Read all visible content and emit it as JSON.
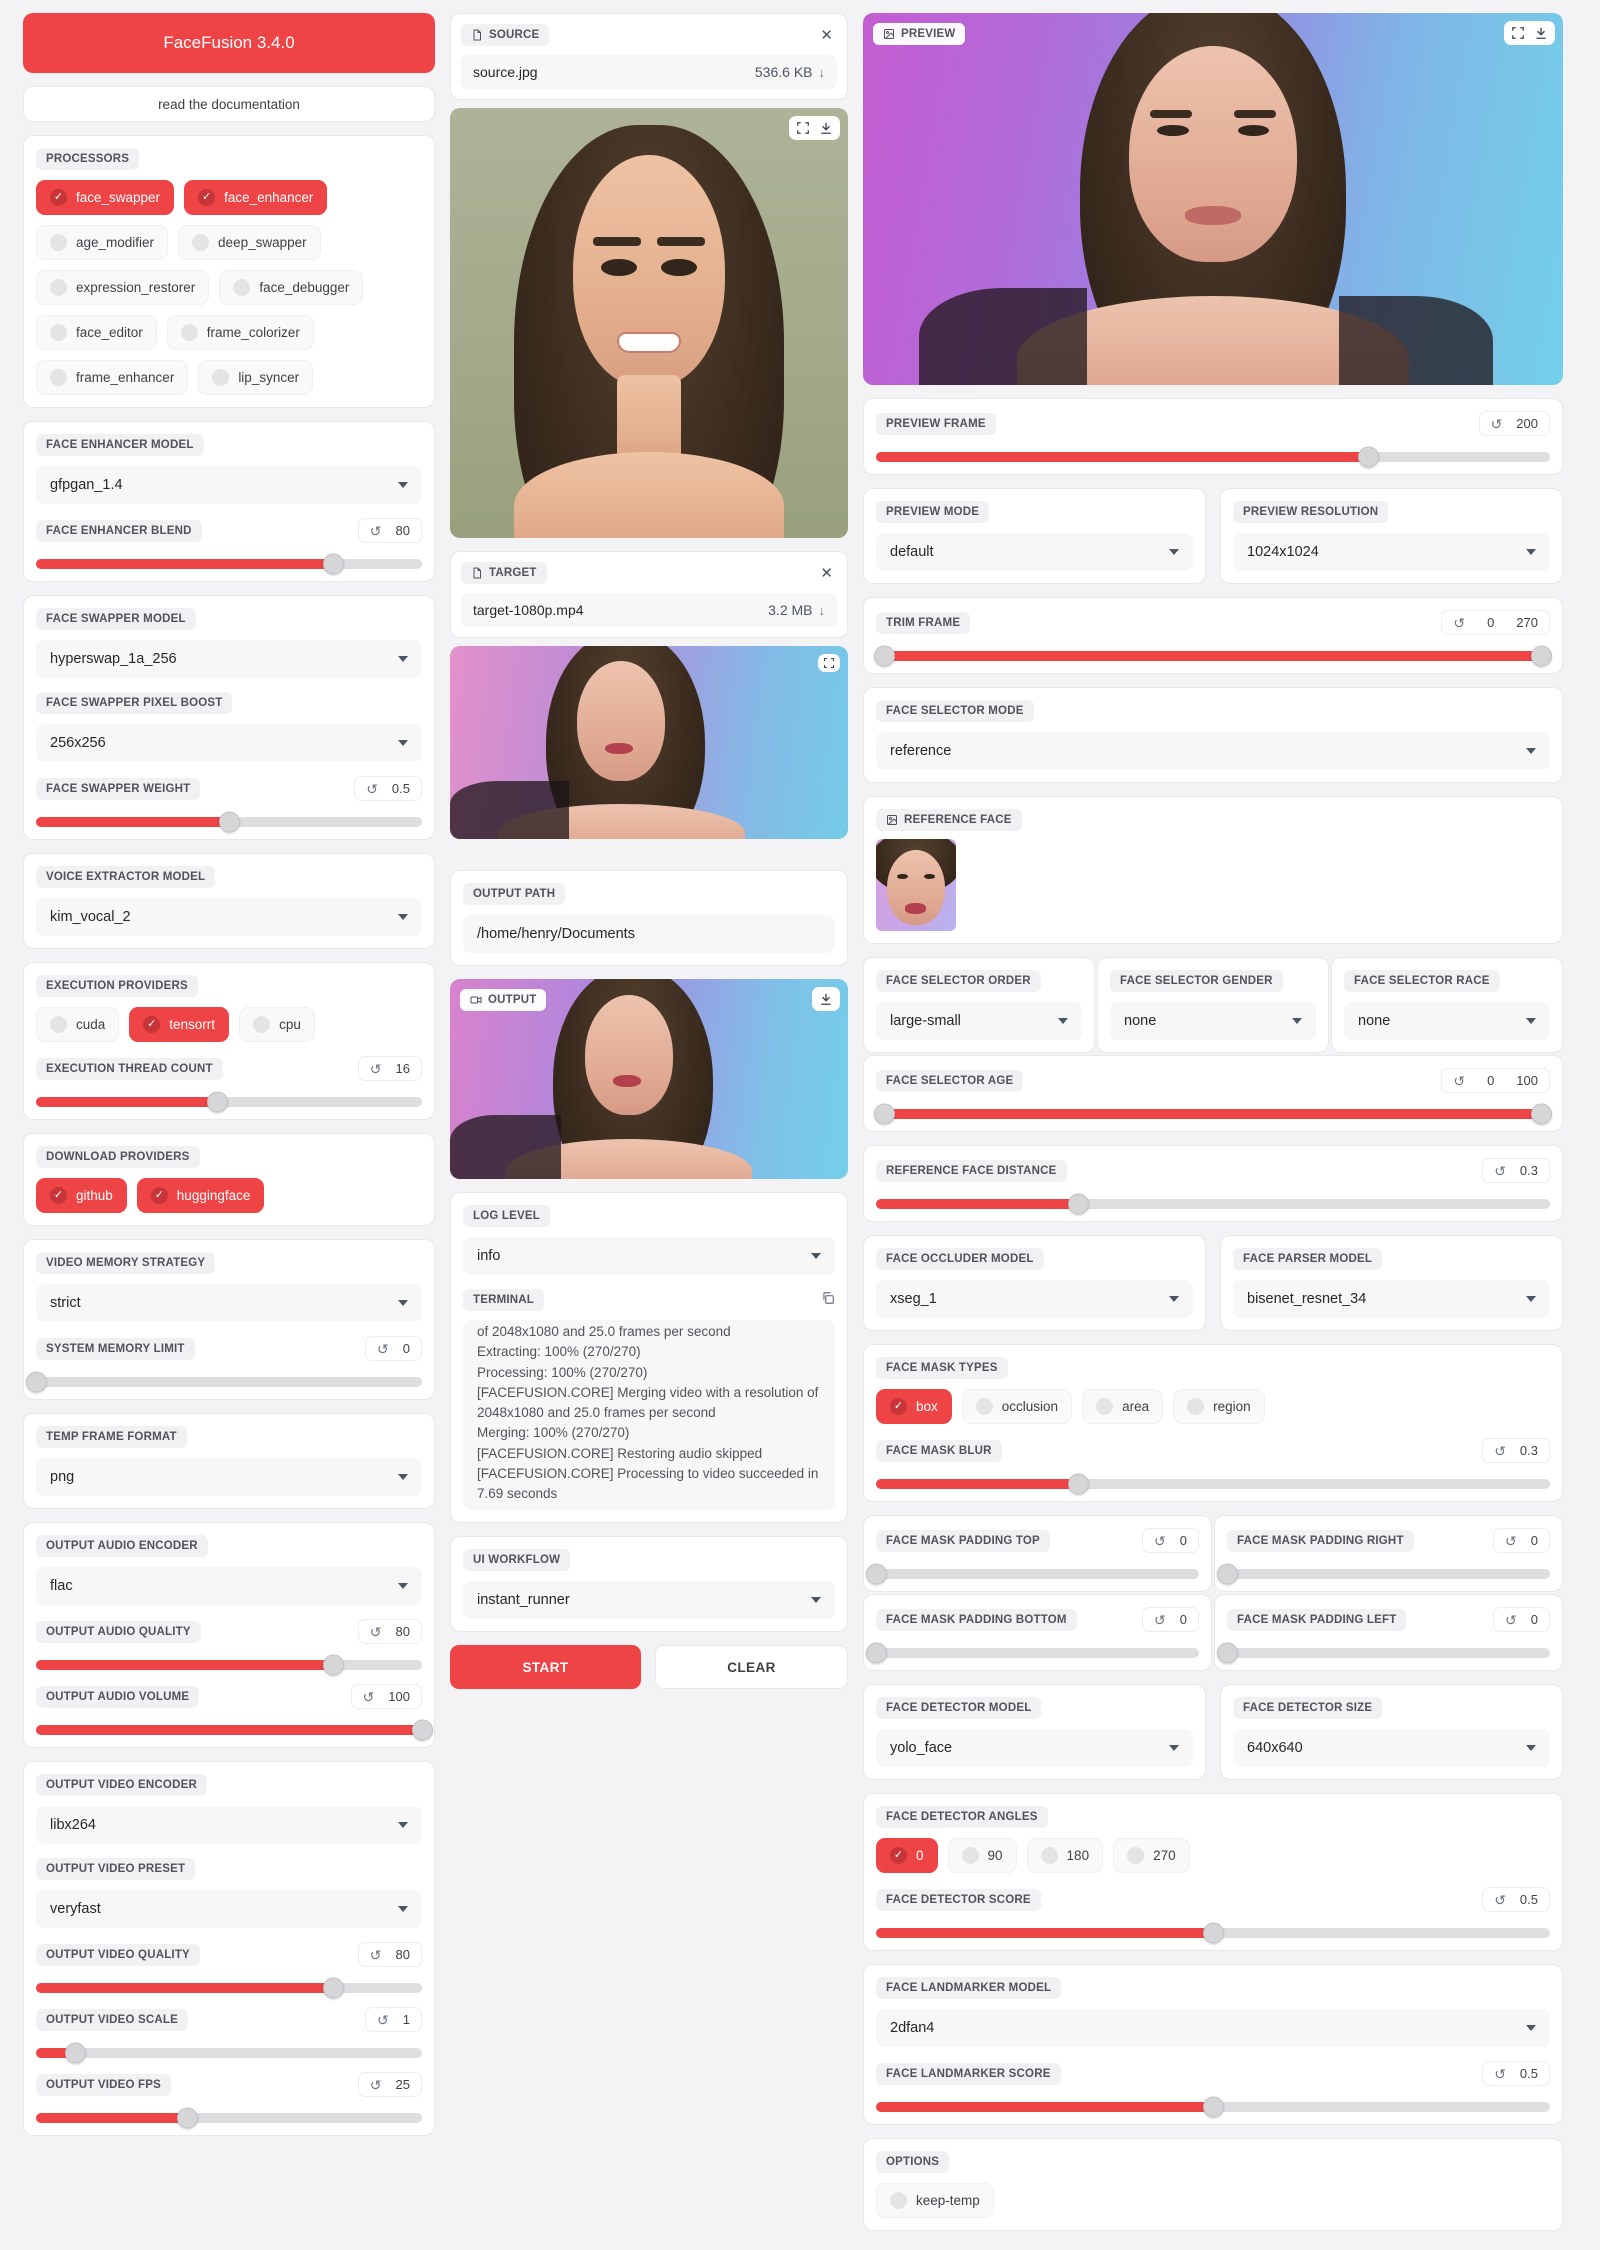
{
  "app": {
    "title": "FaceFusion 3.4.0",
    "doc_button": "read the documentation"
  },
  "colors": {
    "accent": "#ef4446",
    "accent_dark": "#c73538"
  },
  "left": {
    "processors": {
      "label": "PROCESSORS",
      "items": [
        {
          "label": "face_swapper",
          "checked": true
        },
        {
          "label": "face_enhancer",
          "checked": true
        },
        {
          "label": "age_modifier",
          "checked": false
        },
        {
          "label": "deep_swapper",
          "checked": false
        },
        {
          "label": "expression_restorer",
          "checked": false
        },
        {
          "label": "face_debugger",
          "checked": false
        },
        {
          "label": "face_editor",
          "checked": false
        },
        {
          "label": "frame_colorizer",
          "checked": false
        },
        {
          "label": "frame_enhancer",
          "checked": false
        },
        {
          "label": "lip_syncer",
          "checked": false
        }
      ]
    },
    "face_enhancer_model": {
      "label": "FACE ENHANCER MODEL",
      "value": "gfpgan_1.4"
    },
    "face_enhancer_blend": {
      "label": "FACE ENHANCER BLEND",
      "value": "80",
      "percent": 77
    },
    "face_swapper_model": {
      "label": "FACE SWAPPER MODEL",
      "value": "hyperswap_1a_256"
    },
    "face_swapper_pixel_boost": {
      "label": "FACE SWAPPER PIXEL BOOST",
      "value": "256x256"
    },
    "face_swapper_weight": {
      "label": "FACE SWAPPER WEIGHT",
      "value": "0.5",
      "percent": 50
    },
    "voice_extractor_model": {
      "label": "VOICE EXTRACTOR MODEL",
      "value": "kim_vocal_2"
    },
    "execution_providers": {
      "label": "EXECUTION PROVIDERS",
      "items": [
        {
          "label": "cuda",
          "checked": false
        },
        {
          "label": "tensorrt",
          "checked": true
        },
        {
          "label": "cpu",
          "checked": false
        }
      ]
    },
    "execution_thread_count": {
      "label": "EXECUTION THREAD COUNT",
      "value": "16",
      "percent": 47
    },
    "download_providers": {
      "label": "DOWNLOAD PROVIDERS",
      "items": [
        {
          "label": "github",
          "checked": true
        },
        {
          "label": "huggingface",
          "checked": true
        }
      ]
    },
    "video_memory_strategy": {
      "label": "VIDEO MEMORY STRATEGY",
      "value": "strict"
    },
    "system_memory_limit": {
      "label": "SYSTEM MEMORY LIMIT",
      "value": "0",
      "percent": 0
    },
    "temp_frame_format": {
      "label": "TEMP FRAME FORMAT",
      "value": "png"
    },
    "output_audio_encoder": {
      "label": "OUTPUT AUDIO ENCODER",
      "value": "flac"
    },
    "output_audio_quality": {
      "label": "OUTPUT AUDIO QUALITY",
      "value": "80",
      "percent": 77
    },
    "output_audio_volume": {
      "label": "OUTPUT AUDIO VOLUME",
      "value": "100",
      "percent": 100
    },
    "output_video_encoder": {
      "label": "OUTPUT VIDEO ENCODER",
      "value": "libx264"
    },
    "output_video_preset": {
      "label": "OUTPUT VIDEO PRESET",
      "value": "veryfast"
    },
    "output_video_quality": {
      "label": "OUTPUT VIDEO QUALITY",
      "value": "80",
      "percent": 77
    },
    "output_video_scale": {
      "label": "OUTPUT VIDEO SCALE",
      "value": "1",
      "percent": 10
    },
    "output_video_fps": {
      "label": "OUTPUT VIDEO FPS",
      "value": "25",
      "percent": 39
    }
  },
  "middle": {
    "source": {
      "label": "SOURCE",
      "filename": "source.jpg",
      "filesize": "536.6 KB"
    },
    "target": {
      "label": "TARGET",
      "filename": "target-1080p.mp4",
      "filesize": "3.2 MB"
    },
    "output_path": {
      "label": "OUTPUT PATH",
      "value": "/home/henry/Documents"
    },
    "output": {
      "label": "OUTPUT"
    },
    "log_level": {
      "label": "LOG LEVEL",
      "value": "info"
    },
    "terminal": {
      "label": "TERMINAL",
      "text": "of 2048x1080 and 25.0 frames per second\nExtracting: 100% (270/270)\nProcessing: 100% (270/270)\n[FACEFUSION.CORE] Merging video with a resolution of 2048x1080 and 25.0 frames per second\nMerging: 100% (270/270)\n[FACEFUSION.CORE] Restoring audio skipped\n[FACEFUSION.CORE] Processing to video succeeded in 7.69 seconds"
    },
    "ui_workflow": {
      "label": "UI WORKFLOW",
      "value": "instant_runner"
    },
    "start_button": "START",
    "clear_button": "CLEAR"
  },
  "right": {
    "preview": {
      "label": "PREVIEW"
    },
    "preview_frame": {
      "label": "PREVIEW FRAME",
      "value": "200",
      "percent": 73
    },
    "preview_mode": {
      "label": "PREVIEW MODE",
      "value": "default"
    },
    "preview_resolution": {
      "label": "PREVIEW RESOLUTION",
      "value": "1024x1024"
    },
    "trim_frame": {
      "label": "TRIM FRAME",
      "start": "0",
      "end": "270"
    },
    "face_selector_mode": {
      "label": "FACE SELECTOR MODE",
      "value": "reference"
    },
    "reference_face": {
      "label": "REFERENCE FACE"
    },
    "face_selector_order": {
      "label": "FACE SELECTOR ORDER",
      "value": "large-small"
    },
    "face_selector_gender": {
      "label": "FACE SELECTOR GENDER",
      "value": "none"
    },
    "face_selector_race": {
      "label": "FACE SELECTOR RACE",
      "value": "none"
    },
    "face_selector_age": {
      "label": "FACE SELECTOR AGE",
      "start": "0",
      "end": "100"
    },
    "reference_face_distance": {
      "label": "REFERENCE FACE DISTANCE",
      "value": "0.3",
      "percent": 30
    },
    "face_occluder_model": {
      "label": "FACE OCCLUDER MODEL",
      "value": "xseg_1"
    },
    "face_parser_model": {
      "label": "FACE PARSER MODEL",
      "value": "bisenet_resnet_34"
    },
    "face_mask_types": {
      "label": "FACE MASK TYPES",
      "items": [
        {
          "label": "box",
          "checked": true
        },
        {
          "label": "occlusion",
          "checked": false
        },
        {
          "label": "area",
          "checked": false
        },
        {
          "label": "region",
          "checked": false
        }
      ]
    },
    "face_mask_blur": {
      "label": "FACE MASK BLUR",
      "value": "0.3",
      "percent": 30
    },
    "face_mask_padding_top": {
      "label": "FACE MASK PADDING TOP",
      "value": "0",
      "percent": 0
    },
    "face_mask_padding_right": {
      "label": "FACE MASK PADDING RIGHT",
      "value": "0",
      "percent": 0
    },
    "face_mask_padding_bottom": {
      "label": "FACE MASK PADDING BOTTOM",
      "value": "0",
      "percent": 0
    },
    "face_mask_padding_left": {
      "label": "FACE MASK PADDING LEFT",
      "value": "0",
      "percent": 0
    },
    "face_detector_model": {
      "label": "FACE DETECTOR MODEL",
      "value": "yolo_face"
    },
    "face_detector_size": {
      "label": "FACE DETECTOR SIZE",
      "value": "640x640"
    },
    "face_detector_angles": {
      "label": "FACE DETECTOR ANGLES",
      "items": [
        {
          "label": "0",
          "checked": true
        },
        {
          "label": "90",
          "checked": false
        },
        {
          "label": "180",
          "checked": false
        },
        {
          "label": "270",
          "checked": false
        }
      ]
    },
    "face_detector_score": {
      "label": "FACE DETECTOR SCORE",
      "value": "0.5",
      "percent": 50
    },
    "face_landmarker_model": {
      "label": "FACE LANDMARKER MODEL",
      "value": "2dfan4"
    },
    "face_landmarker_score": {
      "label": "FACE LANDMARKER SCORE",
      "value": "0.5",
      "percent": 50
    },
    "options": {
      "label": "OPTIONS",
      "items": [
        {
          "label": "keep-temp",
          "checked": false
        }
      ]
    }
  }
}
